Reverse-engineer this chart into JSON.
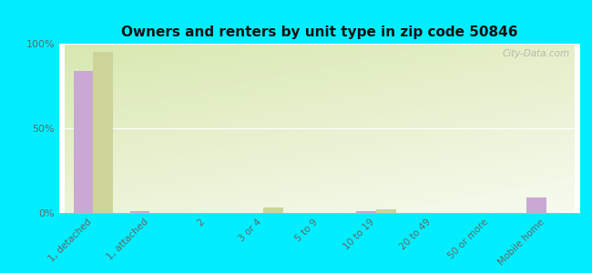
{
  "title": "Owners and renters by unit type in zip code 50846",
  "categories": [
    "1, detached",
    "1, attached",
    "2",
    "3 or 4",
    "5 to 9",
    "10 to 19",
    "20 to 49",
    "50 or more",
    "Mobile home"
  ],
  "owner_values": [
    84,
    1,
    0,
    0,
    0,
    1,
    0,
    0,
    9
  ],
  "renter_values": [
    95,
    0,
    0,
    3,
    0,
    2,
    0,
    0,
    0
  ],
  "owner_color": "#c9a8d4",
  "renter_color": "#cdd49a",
  "background_color": "#00eeff",
  "ylim": [
    0,
    100
  ],
  "yticks": [
    0,
    50,
    100
  ],
  "ytick_labels": [
    "0%",
    "50%",
    "100%"
  ],
  "bar_width": 0.35,
  "watermark": "City-Data.com",
  "grid_color": "#ffffff",
  "tick_label_color": "#666666",
  "title_color": "#111111"
}
